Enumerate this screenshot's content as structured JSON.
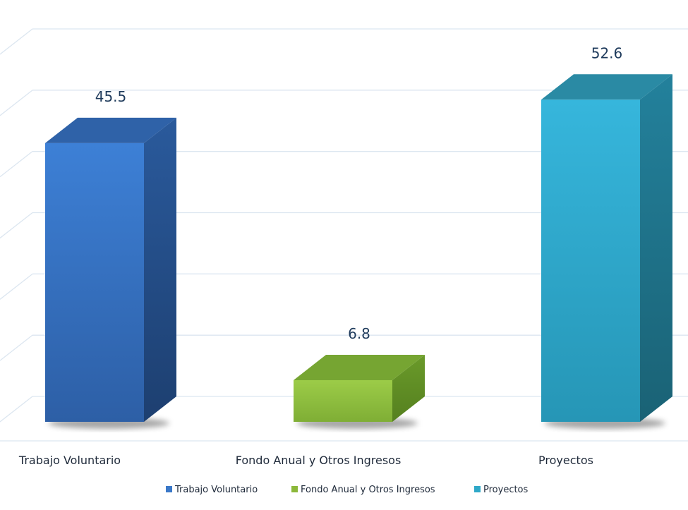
{
  "chart_data": {
    "type": "bar",
    "categories": [
      "Trabajo Voluntario",
      "Fondo Anual y Otros Ingresos",
      "Proyectos"
    ],
    "values": [
      45.5,
      6.8,
      52.6
    ],
    "data_labels": [
      "45.5",
      "6.8",
      "52.6"
    ],
    "title": "",
    "xlabel": "",
    "ylabel": "",
    "ylim": [
      0,
      60
    ],
    "grid": true,
    "legend": "bottom",
    "style": "3d-column",
    "colors": [
      "#3a78c8",
      "#8cb83a",
      "#2fa8c8"
    ]
  }
}
